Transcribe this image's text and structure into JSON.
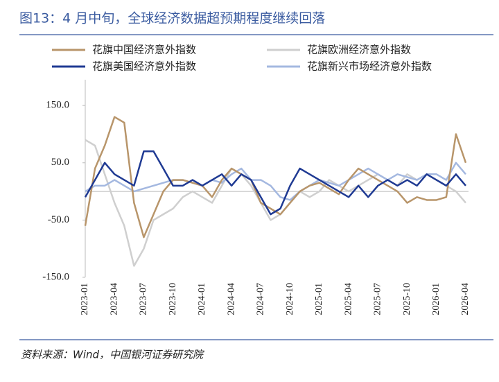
{
  "chart_data": {
    "type": "line",
    "title": "图13：4 月中旬，全球经济数据超预期程度继续回落",
    "source": "资料来源：Wind，中国银河证券研究院",
    "categories": [
      "2023-01",
      null,
      null,
      "2023-04",
      null,
      null,
      "2023-07",
      null,
      null,
      "2023-10",
      null,
      null,
      "2024-01",
      null,
      null,
      "2024-04",
      null,
      null,
      "2024-07",
      null,
      null,
      "2024-10",
      null,
      null,
      "2025-01",
      null,
      null,
      "2025-04",
      null,
      null,
      "2025-07",
      null,
      null,
      "2025-10",
      null,
      null,
      "2026-01",
      null,
      null,
      "2026-04"
    ],
    "ylim": [
      -150,
      195
    ],
    "yticks": [
      {
        "value": 150,
        "label": "150.0"
      },
      {
        "value": 50,
        "label": "50.0"
      },
      {
        "value": -50,
        "label": "-50.0"
      },
      {
        "value": -150,
        "label": "-150.0"
      }
    ],
    "series": [
      {
        "name": "花旗中国经济意外指数",
        "color": "#b8956a",
        "values": [
          -60,
          40,
          80,
          130,
          120,
          -20,
          -80,
          -40,
          0,
          20,
          20,
          15,
          10,
          -10,
          20,
          40,
          30,
          20,
          -20,
          -30,
          -40,
          -20,
          0,
          10,
          15,
          5,
          -5,
          20,
          40,
          30,
          20,
          10,
          0,
          -20,
          -10,
          -15,
          -15,
          -10,
          100,
          50
        ]
      },
      {
        "name": "花旗欧洲经济意外指数",
        "color": "#cfcfcf",
        "values": [
          90,
          80,
          30,
          -20,
          -60,
          -130,
          -100,
          -50,
          -40,
          -30,
          -10,
          0,
          -10,
          -20,
          10,
          40,
          30,
          10,
          -20,
          -50,
          -40,
          -20,
          0,
          -10,
          0,
          20,
          10,
          0,
          10,
          20,
          30,
          20,
          10,
          30,
          20,
          30,
          20,
          10,
          0,
          -20
        ]
      },
      {
        "name": "花旗美国经济意外指数",
        "color": "#1f3a93",
        "values": [
          -10,
          20,
          50,
          30,
          20,
          10,
          70,
          70,
          40,
          10,
          10,
          20,
          10,
          20,
          30,
          10,
          30,
          20,
          -10,
          -40,
          -30,
          10,
          40,
          30,
          20,
          10,
          0,
          -10,
          10,
          -10,
          10,
          20,
          10,
          20,
          10,
          30,
          20,
          10,
          30,
          10
        ]
      },
      {
        "name": "花旗新兴市场经济意外指数",
        "color": "#a4b8e0",
        "values": [
          0,
          10,
          10,
          20,
          10,
          0,
          5,
          10,
          15,
          20,
          20,
          15,
          10,
          20,
          15,
          30,
          40,
          20,
          20,
          10,
          -10,
          -15,
          0,
          10,
          20,
          15,
          10,
          20,
          30,
          40,
          30,
          20,
          30,
          25,
          20,
          30,
          30,
          20,
          50,
          30
        ]
      }
    ]
  }
}
